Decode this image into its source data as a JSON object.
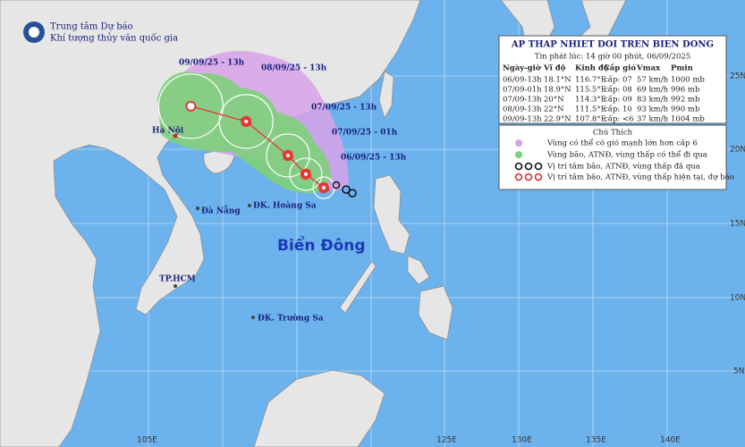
{
  "header": {
    "org_line1": "Trung tâm Dự báo",
    "org_line2": "Khí tượng thủy văn quốc gia"
  },
  "info": {
    "title": "AP THAP NHIET DOI TREN BIEN DONG",
    "subtitle": "Tin phát lúc: 14 giờ 00 phút, 06/09/2025",
    "columns": [
      "Ngày-giờ",
      "Vĩ độ",
      "Kinh độ",
      "Cấp gió",
      "Vmax",
      "Pmin"
    ],
    "rows": [
      [
        "06/09-13h",
        "18.1°N",
        "116.7°E",
        "cấp: 07",
        "57 km/h",
        "1000 mb"
      ],
      [
        "07/09-01h",
        "18.9°N",
        "115.5°E",
        "cấp: 08",
        "69 km/h",
        "996 mb"
      ],
      [
        "07/09-13h",
        "20°N",
        "114.3°E",
        "cấp: 09",
        "83 km/h",
        "992 mb"
      ],
      [
        "08/09-13h",
        "22°N",
        "111.5°E",
        "cấp: 10",
        "93 km/h",
        "990 mb"
      ],
      [
        "09/09-13h",
        "22.9°N",
        "107.8°E",
        "cấp: <6",
        "37 km/h",
        "1004 mb"
      ]
    ]
  },
  "legend": {
    "title": "Chú Thích",
    "items": [
      "Vùng có thể có gió mạnh lớn hơn cấp 6",
      "Vùng bão, ATNĐ, vùng thấp có thể đi qua",
      "Vị trí tâm bão, ATNĐ, vùng thấp đã qua",
      "Vị trí tâm bão, ATNĐ, vùng thấp hiện tại, dự báo"
    ]
  },
  "track_labels": [
    "06/09/25 - 13h",
    "07/09/25 - 01h",
    "07/09/25 - 13h",
    "08/09/25 - 13h",
    "09/09/25 - 13h"
  ],
  "places": {
    "hanoi": "Hà Nội",
    "danang": "Đà Nẵng",
    "hoangsa": "ĐK. Hoàng Sa",
    "biendong": "Biển Đông",
    "hcm": "TP.HCM",
    "truongsa": "ĐK. Trường Sa"
  },
  "lon_labels": [
    "105E",
    "125E",
    "130E",
    "135E",
    "140E"
  ],
  "lat_labels": [
    "25N",
    "20N",
    "15N",
    "10N",
    "5N"
  ]
}
